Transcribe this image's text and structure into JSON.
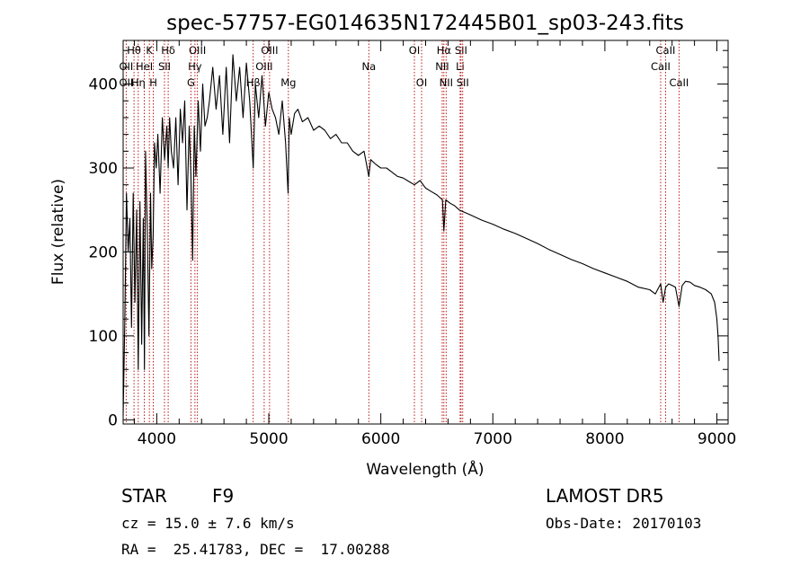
{
  "chart_data": {
    "type": "line",
    "title": "spec-57757-EG014635N172445B01_sp03-243.fits",
    "xlabel": "Wavelength (Å)",
    "ylabel": "Flux (relative)",
    "xlim": [
      3700,
      9100
    ],
    "ylim": [
      -5,
      452
    ],
    "xticks": [
      4000,
      5000,
      6000,
      7000,
      8000,
      9000
    ],
    "yticks": [
      0,
      100,
      200,
      300,
      400
    ],
    "series": [
      {
        "x": [
          3700,
          3715,
          3730,
          3745,
          3760,
          3775,
          3790,
          3805,
          3820,
          3835,
          3850,
          3865,
          3880,
          3890,
          3900,
          3915,
          3930,
          3945,
          3955,
          3968,
          3980,
          3995,
          4010,
          4030,
          4050,
          4070,
          4090,
          4102,
          4115,
          4130,
          4150,
          4170,
          4190,
          4210,
          4230,
          4250,
          4270,
          4290,
          4305,
          4320,
          4335,
          4350,
          4370,
          4390,
          4410,
          4430,
          4450,
          4470,
          4500,
          4530,
          4560,
          4590,
          4620,
          4650,
          4680,
          4710,
          4740,
          4770,
          4800,
          4830,
          4861,
          4880,
          4910,
          4940,
          4970,
          5000,
          5030,
          5060,
          5090,
          5120,
          5150,
          5172,
          5183,
          5200,
          5230,
          5260,
          5300,
          5350,
          5400,
          5450,
          5500,
          5550,
          5600,
          5650,
          5700,
          5750,
          5800,
          5850,
          5893,
          5910,
          5950,
          6000,
          6050,
          6100,
          6150,
          6200,
          6250,
          6300,
          6350,
          6400,
          6450,
          6500,
          6550,
          6563,
          6580,
          6620,
          6660,
          6700,
          6750,
          6800,
          6900,
          7000,
          7100,
          7200,
          7300,
          7400,
          7500,
          7600,
          7700,
          7800,
          7900,
          8000,
          8100,
          8200,
          8300,
          8400,
          8450,
          8498,
          8520,
          8542,
          8570,
          8600,
          8630,
          8662,
          8690,
          8720,
          8760,
          8800,
          8850,
          8900,
          8950,
          8980,
          9000,
          9010,
          9020
        ],
        "y": [
          5,
          120,
          270,
          200,
          240,
          110,
          270,
          140,
          250,
          60,
          260,
          90,
          240,
          60,
          320,
          230,
          100,
          270,
          180,
          220,
          330,
          300,
          340,
          270,
          360,
          310,
          350,
          300,
          360,
          320,
          300,
          360,
          280,
          370,
          330,
          380,
          250,
          350,
          290,
          190,
          350,
          290,
          380,
          320,
          400,
          350,
          360,
          380,
          420,
          370,
          410,
          340,
          420,
          330,
          435,
          380,
          420,
          360,
          425,
          380,
          300,
          400,
          360,
          410,
          350,
          390,
          370,
          360,
          340,
          380,
          330,
          270,
          360,
          340,
          365,
          370,
          355,
          360,
          345,
          350,
          345,
          335,
          340,
          330,
          330,
          320,
          315,
          320,
          290,
          310,
          305,
          300,
          300,
          295,
          290,
          288,
          284,
          280,
          285,
          276,
          272,
          268,
          262,
          225,
          262,
          258,
          255,
          250,
          247,
          244,
          238,
          233,
          227,
          222,
          216,
          210,
          203,
          197,
          191,
          186,
          180,
          175,
          170,
          165,
          158,
          155,
          150,
          162,
          140,
          158,
          162,
          160,
          158,
          135,
          160,
          165,
          164,
          160,
          158,
          155,
          150,
          140,
          120,
          100,
          70
        ]
      }
    ],
    "lines": [
      {
        "name": "Hθ",
        "x": 3797,
        "row": 1
      },
      {
        "name": "OII",
        "x": 3727,
        "row": 2
      },
      {
        "name": "OII",
        "x": 3727,
        "row": 3
      },
      {
        "name": "K",
        "x": 3934,
        "row": 1
      },
      {
        "name": "HeI",
        "x": 3889,
        "row": 2
      },
      {
        "name": "Hη",
        "x": 3835,
        "row": 3
      },
      {
        "name": "Hδ",
        "x": 4102,
        "row": 1
      },
      {
        "name": "SII",
        "x": 4069,
        "row": 2
      },
      {
        "name": "H",
        "x": 3969,
        "row": 3
      },
      {
        "name": "OIII",
        "x": 4363,
        "row": 1
      },
      {
        "name": "Hγ",
        "x": 4341,
        "row": 2
      },
      {
        "name": "G",
        "x": 4305,
        "row": 3
      },
      {
        "name": "OIII",
        "x": 5007,
        "row": 1
      },
      {
        "name": "OIII",
        "x": 4959,
        "row": 2
      },
      {
        "name": "Hβ",
        "x": 4861,
        "row": 3
      },
      {
        "name": "Mg",
        "x": 5175,
        "row": 3
      },
      {
        "name": "Na",
        "x": 5893,
        "row": 2
      },
      {
        "name": "OI",
        "x": 6300,
        "row": 1
      },
      {
        "name": "OI",
        "x": 6364,
        "row": 3
      },
      {
        "name": "Hα",
        "x": 6563,
        "row": 1
      },
      {
        "name": "SII",
        "x": 6716,
        "row": 1
      },
      {
        "name": "NII",
        "x": 6548,
        "row": 2
      },
      {
        "name": "Li",
        "x": 6708,
        "row": 2
      },
      {
        "name": "NII",
        "x": 6583,
        "row": 3
      },
      {
        "name": "SII",
        "x": 6731,
        "row": 3
      },
      {
        "name": "CaII",
        "x": 8542,
        "row": 1
      },
      {
        "name": "CaII",
        "x": 8498,
        "row": 2
      },
      {
        "name": "CaII",
        "x": 8662,
        "row": 3
      }
    ]
  },
  "info": {
    "object_class": "STAR",
    "subclass": "F9",
    "redshift_text": "cz = 15.0 ± 7.6 km/s",
    "coords_text": "RA =  25.41783, DEC =  17.00288",
    "survey": "LAMOST DR5",
    "obs_date": "Obs-Date: 20170103"
  }
}
